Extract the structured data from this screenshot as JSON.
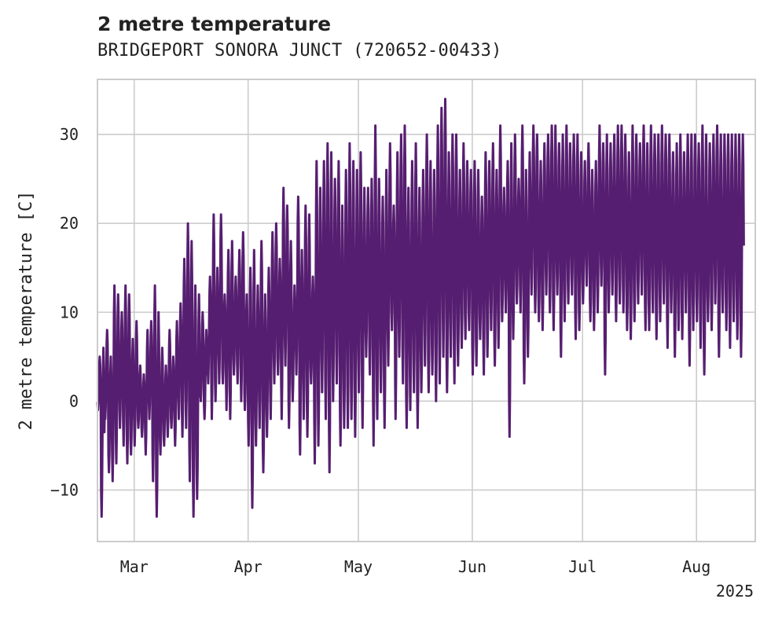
{
  "chart_data": {
    "type": "line",
    "title": "2 metre temperature",
    "subtitle": "BRIDGEPORT SONORA JUNCT (720652-00433)",
    "ylabel": "2 metre temperature [C]",
    "xlabel": "",
    "ylim": [
      -15.8,
      36.2
    ],
    "xlim": [
      "2025-02-19",
      "2025-08-17"
    ],
    "x_ticks": [
      {
        "date": "2025-03-01",
        "label": "Mar"
      },
      {
        "date": "2025-04-01",
        "label": "Apr"
      },
      {
        "date": "2025-05-01",
        "label": "May"
      },
      {
        "date": "2025-06-01",
        "label": "Jun"
      },
      {
        "date": "2025-07-01",
        "label": "Jul"
      },
      {
        "date": "2025-08-01",
        "label": "Aug"
      }
    ],
    "x_offset_label": "2025",
    "y_ticks": [
      -10,
      0,
      10,
      20,
      30
    ],
    "y_tick_labels": [
      "−10",
      "0",
      "10",
      "20",
      "30"
    ],
    "grid": true,
    "colors": {
      "line": "#561e70",
      "grid": "#cccccc",
      "spine": "#cccccc"
    },
    "series": [
      {
        "x": [
          "2025-02-19",
          "2025-02-20",
          "2025-02-21",
          "2025-02-22",
          "2025-02-23",
          "2025-02-24",
          "2025-02-25",
          "2025-02-26",
          "2025-02-27",
          "2025-02-28",
          "2025-03-01",
          "2025-03-02",
          "2025-03-03",
          "2025-03-04",
          "2025-03-05",
          "2025-03-06",
          "2025-03-07",
          "2025-03-08",
          "2025-03-09",
          "2025-03-10",
          "2025-03-11",
          "2025-03-12",
          "2025-03-13",
          "2025-03-14",
          "2025-03-15",
          "2025-03-16",
          "2025-03-17",
          "2025-03-18",
          "2025-03-19",
          "2025-03-20",
          "2025-03-21",
          "2025-03-22",
          "2025-03-23",
          "2025-03-24",
          "2025-03-25",
          "2025-03-26",
          "2025-03-27",
          "2025-03-28",
          "2025-03-29",
          "2025-03-30",
          "2025-03-31",
          "2025-04-01",
          "2025-04-02",
          "2025-04-03",
          "2025-04-04",
          "2025-04-05",
          "2025-04-06",
          "2025-04-07",
          "2025-04-08",
          "2025-04-09",
          "2025-04-10",
          "2025-04-11",
          "2025-04-12",
          "2025-04-13",
          "2025-04-14",
          "2025-04-15",
          "2025-04-16",
          "2025-04-17",
          "2025-04-18",
          "2025-04-19",
          "2025-04-20",
          "2025-04-21",
          "2025-04-22",
          "2025-04-23",
          "2025-04-24",
          "2025-04-25",
          "2025-04-26",
          "2025-04-27",
          "2025-04-28",
          "2025-04-29",
          "2025-04-30",
          "2025-05-01",
          "2025-05-02",
          "2025-05-03",
          "2025-05-04",
          "2025-05-05",
          "2025-05-06",
          "2025-05-07",
          "2025-05-08",
          "2025-05-09",
          "2025-05-10",
          "2025-05-11",
          "2025-05-12",
          "2025-05-13",
          "2025-05-14",
          "2025-05-15",
          "2025-05-16",
          "2025-05-17",
          "2025-05-18",
          "2025-05-19",
          "2025-05-20",
          "2025-05-21",
          "2025-05-22",
          "2025-05-23",
          "2025-05-24",
          "2025-05-25",
          "2025-05-26",
          "2025-05-27",
          "2025-05-28",
          "2025-05-29",
          "2025-05-30",
          "2025-05-31",
          "2025-06-01",
          "2025-06-02",
          "2025-06-03",
          "2025-06-04",
          "2025-06-05",
          "2025-06-06",
          "2025-06-07",
          "2025-06-08",
          "2025-06-09",
          "2025-06-10",
          "2025-06-11",
          "2025-06-12",
          "2025-06-13",
          "2025-06-14",
          "2025-06-15",
          "2025-06-16",
          "2025-06-17",
          "2025-06-18",
          "2025-06-19",
          "2025-06-20",
          "2025-06-21",
          "2025-06-22",
          "2025-06-23",
          "2025-06-24",
          "2025-06-25",
          "2025-06-26",
          "2025-06-27",
          "2025-06-28",
          "2025-06-29",
          "2025-06-30",
          "2025-07-01",
          "2025-07-02",
          "2025-07-03",
          "2025-07-04",
          "2025-07-05",
          "2025-07-06",
          "2025-07-07",
          "2025-07-08",
          "2025-07-09",
          "2025-07-10",
          "2025-07-11",
          "2025-07-12",
          "2025-07-13",
          "2025-07-14",
          "2025-07-15",
          "2025-07-16",
          "2025-07-17",
          "2025-07-18",
          "2025-07-19",
          "2025-07-20",
          "2025-07-21",
          "2025-07-22",
          "2025-07-23",
          "2025-07-24",
          "2025-07-25",
          "2025-07-26",
          "2025-07-27",
          "2025-07-28",
          "2025-07-29",
          "2025-07-30",
          "2025-07-31",
          "2025-08-01",
          "2025-08-02",
          "2025-08-03",
          "2025-08-04",
          "2025-08-05",
          "2025-08-06",
          "2025-08-07",
          "2025-08-08",
          "2025-08-09",
          "2025-08-10",
          "2025-08-11",
          "2025-08-12",
          "2025-08-13",
          "2025-08-14",
          "2025-08-15",
          "2025-08-16"
        ],
        "min": [
          -1,
          -13,
          -2,
          -8,
          -9,
          -7,
          -3,
          -5,
          -7,
          -6,
          -5,
          -3,
          -4,
          -6,
          -2,
          -9,
          -13,
          -6,
          -5,
          -4,
          -3,
          -5,
          -2,
          -4,
          -3,
          -9,
          -13,
          -11,
          0,
          -2,
          2,
          -2,
          0,
          2,
          2,
          -1,
          -2,
          3,
          2,
          0,
          -1,
          -5,
          -12,
          -5,
          -3,
          -8,
          -4,
          -2,
          2,
          3,
          -2,
          4,
          -3,
          0,
          3,
          -6,
          -2,
          -4,
          2,
          -7,
          -5,
          1,
          -2,
          -8,
          0,
          2,
          -5,
          -3,
          -3,
          -2,
          -4,
          1,
          -3,
          5,
          3,
          -5,
          -2,
          1,
          -3,
          4,
          8,
          -2,
          5,
          2,
          -3,
          -1,
          1,
          -3,
          1,
          4,
          1,
          3,
          0,
          2,
          5,
          1,
          5,
          2,
          4,
          6,
          7,
          8,
          3,
          4,
          7,
          3,
          5,
          8,
          4,
          6,
          9,
          10,
          -4,
          7,
          11,
          10,
          2,
          5,
          12,
          10,
          9,
          8,
          12,
          10,
          8,
          12,
          5,
          9,
          11,
          12,
          7,
          8,
          11,
          13,
          9,
          8,
          10,
          13,
          3,
          10,
          12,
          9,
          11,
          10,
          8,
          7,
          9,
          11,
          12,
          8,
          8,
          10,
          7,
          9,
          11,
          6,
          10,
          5,
          8,
          7,
          10,
          4,
          8,
          9,
          6,
          3,
          9,
          8,
          11,
          5,
          10,
          8,
          6,
          9,
          7,
          5
        ],
        "max": [
          5,
          6,
          8,
          5,
          13,
          12,
          10,
          13,
          12,
          7,
          9,
          4,
          3,
          8,
          9,
          13,
          10,
          6,
          4,
          8,
          5,
          9,
          11,
          16,
          20,
          18,
          13,
          12,
          10,
          8,
          14,
          21,
          15,
          21,
          12,
          17,
          18,
          14,
          17,
          19,
          12,
          15,
          17,
          13,
          18,
          12,
          15,
          19,
          20,
          16,
          24,
          22,
          18,
          13,
          23,
          17,
          22,
          21,
          14,
          27,
          24,
          27,
          29,
          28,
          25,
          27,
          22,
          26,
          29,
          27,
          26,
          28,
          24,
          24,
          25,
          31,
          25,
          23,
          26,
          29,
          22,
          28,
          30,
          31,
          24,
          27,
          29,
          24,
          26,
          30,
          27,
          26,
          31,
          33,
          34,
          28,
          30,
          30,
          26,
          29,
          27,
          26,
          27,
          26,
          23,
          28,
          27,
          29,
          26,
          31,
          24,
          27,
          29,
          30,
          25,
          31,
          26,
          28,
          31,
          30,
          27,
          29,
          30,
          31,
          31,
          29,
          30,
          31,
          29,
          30,
          30,
          28,
          27,
          29,
          26,
          27,
          31,
          29,
          30,
          29,
          30,
          31,
          31,
          30,
          28,
          31,
          30,
          29,
          31,
          29,
          31,
          30,
          30,
          31,
          30,
          30,
          28,
          29,
          30,
          28,
          30,
          30,
          30,
          29,
          31,
          30,
          29,
          30,
          31,
          30,
          30,
          30,
          30,
          30,
          30,
          30,
          30
        ]
      }
    ]
  }
}
